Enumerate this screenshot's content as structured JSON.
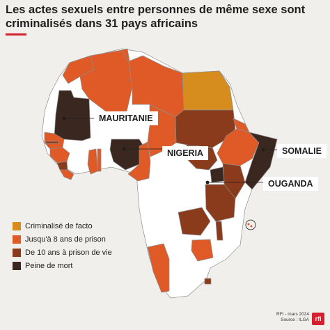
{
  "title": "Les actes sexuels entre personnes de même sexe sont criminalisés dans 31 pays africains",
  "legend": [
    {
      "label": "Criminalisé de facto",
      "color": "#d78d1d"
    },
    {
      "label": "Jusqu'à 8 ans de prison",
      "color": "#e05a28"
    },
    {
      "label": "De 10 ans à prison de vie",
      "color": "#8a3b1c"
    },
    {
      "label": "Peine de mort",
      "color": "#3a2820"
    }
  ],
  "callouts": {
    "mauritanie": "MAURITANIE",
    "nigeria": "NIGERIA",
    "somalie": "SOMALIE",
    "ouganda": "OUGANDA"
  },
  "credits": {
    "line1": "RFI - mars 2024",
    "line2": "Source : ILGA"
  },
  "logo_text": "rfi",
  "colors": {
    "background": "#f0efeb",
    "not_criminalized": "#ffffff",
    "border": "#9a9a9a",
    "accent": "#d6202d"
  }
}
